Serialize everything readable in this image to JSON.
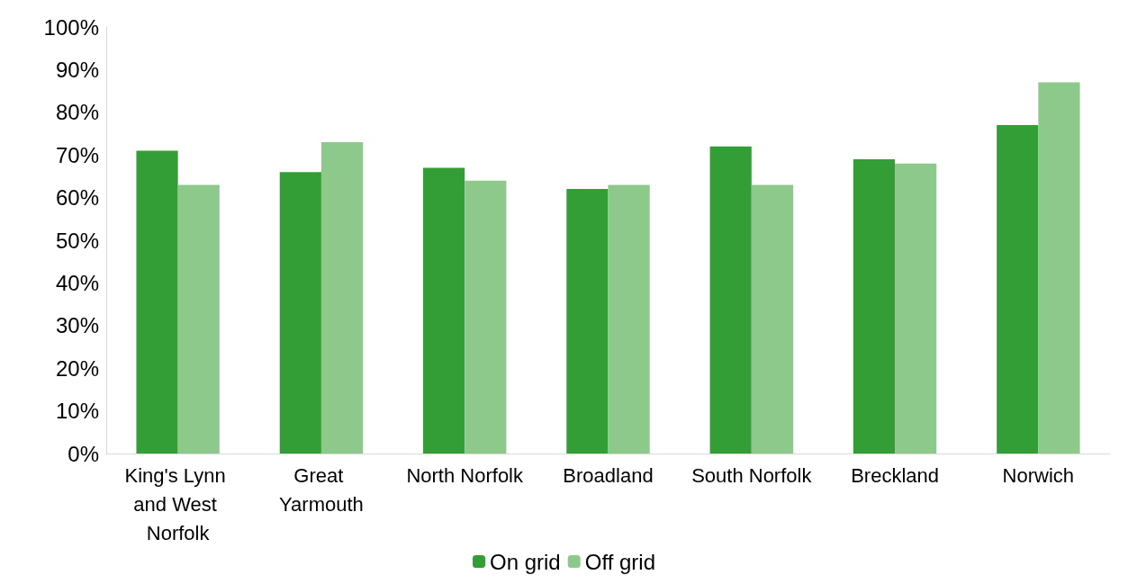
{
  "chart_data": {
    "type": "bar",
    "categories": [
      "King's Lynn and West Norfolk",
      "Great Yarmouth",
      "North Norfolk",
      "Broadland",
      "South Norfolk",
      "Breckland",
      "Norwich"
    ],
    "series": [
      {
        "name": "On grid",
        "color": "#339e35",
        "values": [
          71,
          66,
          67,
          62,
          72,
          69,
          77
        ]
      },
      {
        "name": "Off grid",
        "color": "#8dc98b",
        "values": [
          63,
          73,
          64,
          63,
          63,
          68,
          87
        ]
      }
    ],
    "ylim": [
      0,
      100
    ],
    "yticks": [
      {
        "value": 0,
        "label": "0%"
      },
      {
        "value": 10,
        "label": "10%"
      },
      {
        "value": 20,
        "label": "20%"
      },
      {
        "value": 30,
        "label": "30%"
      },
      {
        "value": 40,
        "label": "40%"
      },
      {
        "value": 50,
        "label": "50%"
      },
      {
        "value": 60,
        "label": "60%"
      },
      {
        "value": 70,
        "label": "70%"
      },
      {
        "value": 80,
        "label": "80%"
      },
      {
        "value": 90,
        "label": "90%"
      },
      {
        "value": 100,
        "label": "100%"
      }
    ],
    "grid": false,
    "legend": "bottom"
  }
}
